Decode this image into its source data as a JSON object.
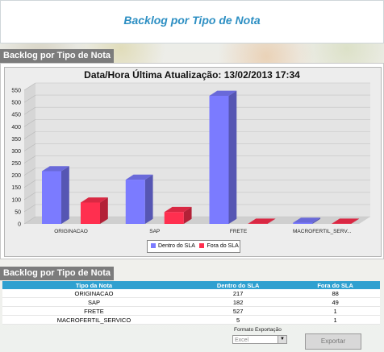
{
  "header": {
    "title": "Backlog por Tipo de Nota"
  },
  "chart_panel": {
    "tab_label": "Backlog por Tipo de Nota"
  },
  "table_panel": {
    "tab_label": "Backlog por Tipo de Nota"
  },
  "chart_data": {
    "type": "bar",
    "title": "Data/Hora Última Atualização: 13/02/2013 17:34",
    "categories": [
      "ORIGINACAO",
      "SAP",
      "FRETE",
      "MACROFERTIL_SERV..."
    ],
    "series": [
      {
        "name": "Dentro do SLA",
        "values": [
          217,
          182,
          527,
          5
        ],
        "color": "#7b7bff"
      },
      {
        "name": "Fora do SLA",
        "values": [
          88,
          49,
          1,
          1
        ],
        "color": "#ff2f4f"
      }
    ],
    "ylim": [
      0,
      550
    ],
    "yticks": [
      0,
      50,
      100,
      150,
      200,
      250,
      300,
      350,
      400,
      450,
      500,
      550
    ],
    "legend_position": "bottom",
    "grid": true,
    "style": "3d"
  },
  "table": {
    "columns": [
      "Tipo da Nota",
      "Dentro do SLA",
      "Fora do SLA"
    ],
    "rows": [
      [
        "ORIGINACAO",
        "217",
        "88"
      ],
      [
        "SAP",
        "182",
        "49"
      ],
      [
        "FRETE",
        "527",
        "1"
      ],
      [
        "MACROFERTIL_SERVICO",
        "5",
        "1"
      ]
    ]
  },
  "export": {
    "format_label": "Formato Exportação",
    "selected_format": "Excel",
    "button_label": "Exportar"
  }
}
